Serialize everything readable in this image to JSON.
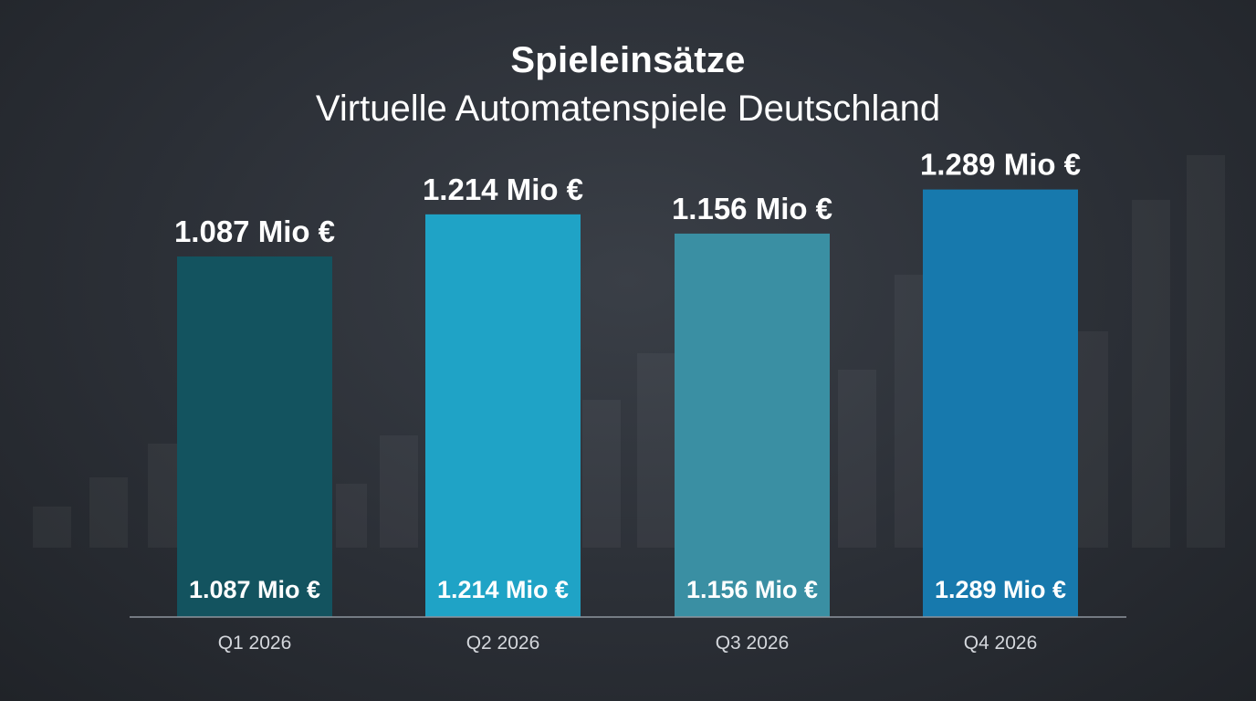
{
  "chart_data": {
    "type": "bar",
    "title": "Spieleinsätze",
    "subtitle": "Virtuelle Automatenspiele Deutschland",
    "categories": [
      "Q1 2026",
      "Q2 2026",
      "Q3 2026",
      "Q4 2026"
    ],
    "values": [
      1087,
      1214,
      1156,
      1289
    ],
    "value_labels": [
      "1.087 Mio €",
      "1.214 Mio €",
      "1.156 Mio €",
      "1.289 Mio €"
    ],
    "bar_colors": [
      "#13535f",
      "#1fa3c6",
      "#3a8fa3",
      "#1779ad"
    ],
    "xlabel": "",
    "ylabel": "",
    "ylim": [
      0,
      1600
    ],
    "grid": false,
    "legend": "none"
  }
}
